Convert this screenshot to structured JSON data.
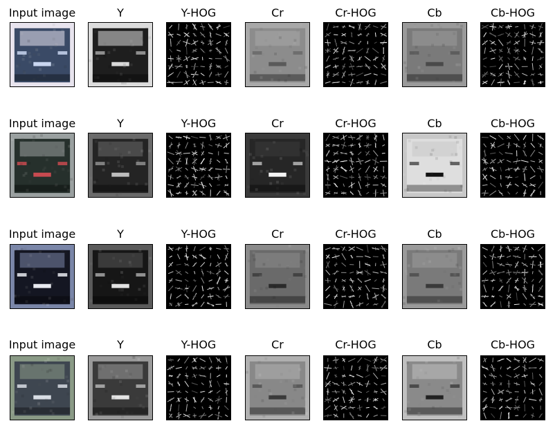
{
  "column_titles": [
    "Input image",
    "Y",
    "Y-HOG",
    "Cr",
    "Cr-HOG",
    "Cb",
    "Cb-HOG"
  ],
  "rows": [
    {
      "panels": [
        {
          "kind": "photo",
          "tone": "#3a4a66",
          "accent": "#c9d6f0",
          "light": "#e8e4ee"
        },
        {
          "kind": "gray",
          "tone": "#1e1e1e",
          "accent": "#d8d8d8",
          "light": "#dcdcdc"
        },
        {
          "kind": "hog"
        },
        {
          "kind": "gray",
          "tone": "#8c8c8c",
          "accent": "#5a5a5a",
          "light": "#a8a8a8"
        },
        {
          "kind": "hog"
        },
        {
          "kind": "gray",
          "tone": "#7a7a7a",
          "accent": "#4a4a4a",
          "light": "#9a9a9a"
        },
        {
          "kind": "hog"
        }
      ]
    },
    {
      "panels": [
        {
          "kind": "photo",
          "tone": "#26302c",
          "accent": "#c84a50",
          "light": "#9aa0a0"
        },
        {
          "kind": "gray",
          "tone": "#242424",
          "accent": "#bdbdbd",
          "light": "#6a6a6a"
        },
        {
          "kind": "hog"
        },
        {
          "kind": "gray",
          "tone": "#262626",
          "accent": "#f4f4f4",
          "light": "#3a3a3a"
        },
        {
          "kind": "hog"
        },
        {
          "kind": "gray",
          "tone": "#dedede",
          "accent": "#111111",
          "light": "#c8c8c8"
        },
        {
          "kind": "hog"
        }
      ]
    },
    {
      "panels": [
        {
          "kind": "photo",
          "tone": "#141622",
          "accent": "#e8eaf0",
          "light": "#7a86a8"
        },
        {
          "kind": "gray",
          "tone": "#161616",
          "accent": "#e2e2e2",
          "light": "#5a5a5a"
        },
        {
          "kind": "hog"
        },
        {
          "kind": "gray",
          "tone": "#6a6a6a",
          "accent": "#2a2a2a",
          "light": "#8a8a8a"
        },
        {
          "kind": "hog"
        },
        {
          "kind": "gray",
          "tone": "#7a7a7a",
          "accent": "#3a3a3a",
          "light": "#9a9a9a"
        },
        {
          "kind": "hog"
        }
      ]
    },
    {
      "panels": [
        {
          "kind": "photo",
          "tone": "#3e4650",
          "accent": "#d8dde4",
          "light": "#8a9a86"
        },
        {
          "kind": "gray",
          "tone": "#3a3a3a",
          "accent": "#e4e4e4",
          "light": "#9a9a9a"
        },
        {
          "kind": "hog"
        },
        {
          "kind": "gray",
          "tone": "#888888",
          "accent": "#3a3a3a",
          "light": "#b0b0b0"
        },
        {
          "kind": "hog"
        },
        {
          "kind": "gray",
          "tone": "#8a8a8a",
          "accent": "#222222",
          "light": "#c0c0c0"
        },
        {
          "kind": "hog"
        }
      ]
    }
  ]
}
